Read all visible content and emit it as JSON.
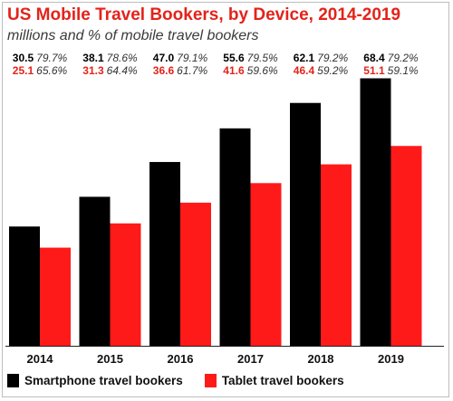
{
  "chart_data": {
    "type": "bar",
    "title": "US Mobile Travel Bookers, by Device, 2014-2019",
    "subtitle": "millions and % of mobile travel bookers",
    "categories": [
      "2014",
      "2015",
      "2016",
      "2017",
      "2018",
      "2019"
    ],
    "series": [
      {
        "name": "Smartphone travel bookers",
        "color": "#000000",
        "values": [
          30.5,
          38.1,
          47.0,
          55.6,
          62.1,
          68.4
        ],
        "value_labels": [
          "30.5",
          "38.1",
          "47.0",
          "55.6",
          "62.1",
          "68.4"
        ],
        "percent_labels": [
          "79.7%",
          "78.6%",
          "79.1%",
          "79.5%",
          "79.2%",
          "79.2%"
        ]
      },
      {
        "name": "Tablet travel bookers",
        "color": "#ff1a1a",
        "values": [
          25.1,
          31.3,
          36.6,
          41.6,
          46.4,
          51.1
        ],
        "value_labels": [
          "25.1",
          "31.3",
          "36.6",
          "41.6",
          "46.4",
          "51.1"
        ],
        "percent_labels": [
          "65.6%",
          "64.4%",
          "61.7%",
          "59.6%",
          "59.2%",
          "59.1%"
        ]
      }
    ],
    "ylim": [
      0,
      75
    ],
    "grid": false,
    "legend_position": "bottom-left",
    "colors": {
      "title": "#e3231a",
      "value_highlight": "#e3231a"
    }
  }
}
